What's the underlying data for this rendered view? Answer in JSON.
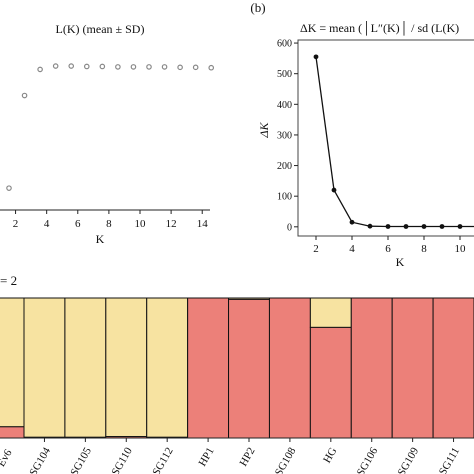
{
  "chart_data": [
    {
      "type": "scatter",
      "title": "L(K) (mean ± SD)",
      "xlabel": "K",
      "ylabel": "",
      "xlim": [
        1,
        14.5
      ],
      "xticks": [
        2,
        4,
        6,
        8,
        10,
        12,
        14
      ],
      "x": [
        1,
        2,
        3,
        4,
        5,
        6,
        7,
        8,
        9,
        10,
        11,
        12,
        13,
        14
      ],
      "y": [
        -7000,
        -5900,
        -5590,
        -5550,
        -5550,
        -5555,
        -5555,
        -5560,
        -5560,
        -5560,
        -5560,
        -5565,
        -5565,
        -5570
      ],
      "ylim": [
        -7200,
        -5300
      ],
      "grid": false,
      "marker_color": "#888888"
    },
    {
      "type": "line",
      "panel_label": "(b)",
      "title": "ΔK = mean (│L″(K)│ / sd (L(K)",
      "xlabel": "K",
      "ylabel": "ΔK",
      "xlim": [
        1,
        11
      ],
      "ylim": [
        -30,
        610
      ],
      "xticks": [
        2,
        4,
        6,
        8,
        10
      ],
      "yticks": [
        0,
        100,
        200,
        300,
        400,
        500,
        600
      ],
      "x": [
        2,
        3,
        4,
        5,
        6,
        7,
        8,
        9,
        10,
        11
      ],
      "y": [
        555,
        120,
        15,
        2,
        1,
        1,
        1,
        1,
        1,
        1
      ],
      "grid": false
    },
    {
      "type": "bar",
      "stacked": true,
      "title": "= 2",
      "categories": [
        "SG104",
        "SG105",
        "SG110",
        "SG112",
        "HP1",
        "HP2",
        "SG108",
        "HG",
        "SG106",
        "SG109",
        "SG111"
      ],
      "partial_first_label": "Ev6",
      "series": [
        {
          "color": "#f7e3a1",
          "values": [
            0.995,
            0.995,
            0.99,
            0.995,
            0.0,
            0.01,
            0.0,
            0.21,
            0.0,
            0.0,
            0.0
          ]
        },
        {
          "color": "#ec8079",
          "values": [
            0.005,
            0.005,
            0.01,
            0.005,
            1.0,
            0.99,
            1.0,
            0.79,
            1.0,
            1.0,
            1.0
          ]
        }
      ],
      "partial_left_bar": {
        "yellow": 0.92,
        "red": 0.08
      },
      "ylim": [
        0,
        1
      ]
    }
  ]
}
